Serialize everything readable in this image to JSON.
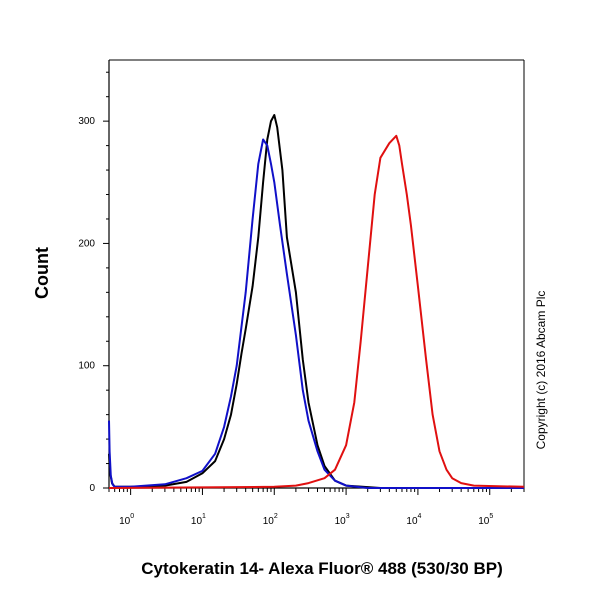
{
  "chart_data": {
    "type": "line",
    "xlabel": "Cytokeratin 14- Alexa Fluor® 488 (530/30 BP)",
    "ylabel": "Count",
    "x_scale": "log",
    "xlim": [
      0.5,
      300000
    ],
    "ylim": [
      0,
      350
    ],
    "y_ticks": [
      0,
      100,
      200,
      300
    ],
    "x_ticks": [
      {
        "base": "10",
        "exp": "0",
        "value": 1
      },
      {
        "base": "10",
        "exp": "1",
        "value": 10
      },
      {
        "base": "10",
        "exp": "2",
        "value": 100
      },
      {
        "base": "10",
        "exp": "3",
        "value": 1000
      },
      {
        "base": "10",
        "exp": "4",
        "value": 10000
      },
      {
        "base": "10",
        "exp": "5",
        "value": 100000
      }
    ],
    "grid": false,
    "annotation": "Copyright (c) 2016 Abcam Plc",
    "series": [
      {
        "color": "#000000",
        "points": [
          [
            0.5,
            28
          ],
          [
            0.52,
            12
          ],
          [
            0.55,
            4
          ],
          [
            0.6,
            1
          ],
          [
            1,
            1
          ],
          [
            3,
            2
          ],
          [
            6,
            5
          ],
          [
            10,
            12
          ],
          [
            15,
            22
          ],
          [
            20,
            40
          ],
          [
            25,
            60
          ],
          [
            30,
            85
          ],
          [
            35,
            110
          ],
          [
            40,
            130
          ],
          [
            50,
            165
          ],
          [
            60,
            205
          ],
          [
            70,
            250
          ],
          [
            80,
            285
          ],
          [
            90,
            300
          ],
          [
            100,
            305
          ],
          [
            110,
            295
          ],
          [
            130,
            260
          ],
          [
            150,
            205
          ],
          [
            200,
            160
          ],
          [
            250,
            105
          ],
          [
            300,
            70
          ],
          [
            400,
            35
          ],
          [
            500,
            18
          ],
          [
            700,
            6
          ],
          [
            1000,
            2
          ],
          [
            3000,
            0
          ],
          [
            300000,
            0
          ]
        ]
      },
      {
        "color": "#1010c8",
        "points": [
          [
            0.5,
            55
          ],
          [
            0.51,
            30
          ],
          [
            0.53,
            10
          ],
          [
            0.56,
            3
          ],
          [
            0.6,
            1
          ],
          [
            1,
            1
          ],
          [
            3,
            3
          ],
          [
            6,
            8
          ],
          [
            10,
            14
          ],
          [
            15,
            28
          ],
          [
            20,
            50
          ],
          [
            25,
            75
          ],
          [
            30,
            100
          ],
          [
            40,
            160
          ],
          [
            50,
            220
          ],
          [
            60,
            265
          ],
          [
            70,
            285
          ],
          [
            80,
            280
          ],
          [
            90,
            265
          ],
          [
            100,
            250
          ],
          [
            120,
            215
          ],
          [
            150,
            175
          ],
          [
            200,
            125
          ],
          [
            250,
            80
          ],
          [
            300,
            55
          ],
          [
            400,
            30
          ],
          [
            500,
            15
          ],
          [
            700,
            6
          ],
          [
            1000,
            2
          ],
          [
            2000,
            0
          ],
          [
            300000,
            0
          ]
        ]
      },
      {
        "color": "#e01010",
        "points": [
          [
            0.5,
            0
          ],
          [
            100,
            1
          ],
          [
            200,
            2
          ],
          [
            300,
            4
          ],
          [
            500,
            8
          ],
          [
            700,
            15
          ],
          [
            1000,
            35
          ],
          [
            1300,
            70
          ],
          [
            1600,
            120
          ],
          [
            2000,
            180
          ],
          [
            2500,
            240
          ],
          [
            3000,
            270
          ],
          [
            4000,
            282
          ],
          [
            5000,
            288
          ],
          [
            5500,
            280
          ],
          [
            6000,
            265
          ],
          [
            7000,
            240
          ],
          [
            8000,
            215
          ],
          [
            10000,
            165
          ],
          [
            13000,
            105
          ],
          [
            16000,
            60
          ],
          [
            20000,
            30
          ],
          [
            25000,
            15
          ],
          [
            30000,
            8
          ],
          [
            40000,
            4
          ],
          [
            60000,
            2
          ],
          [
            300000,
            1
          ]
        ]
      }
    ]
  }
}
